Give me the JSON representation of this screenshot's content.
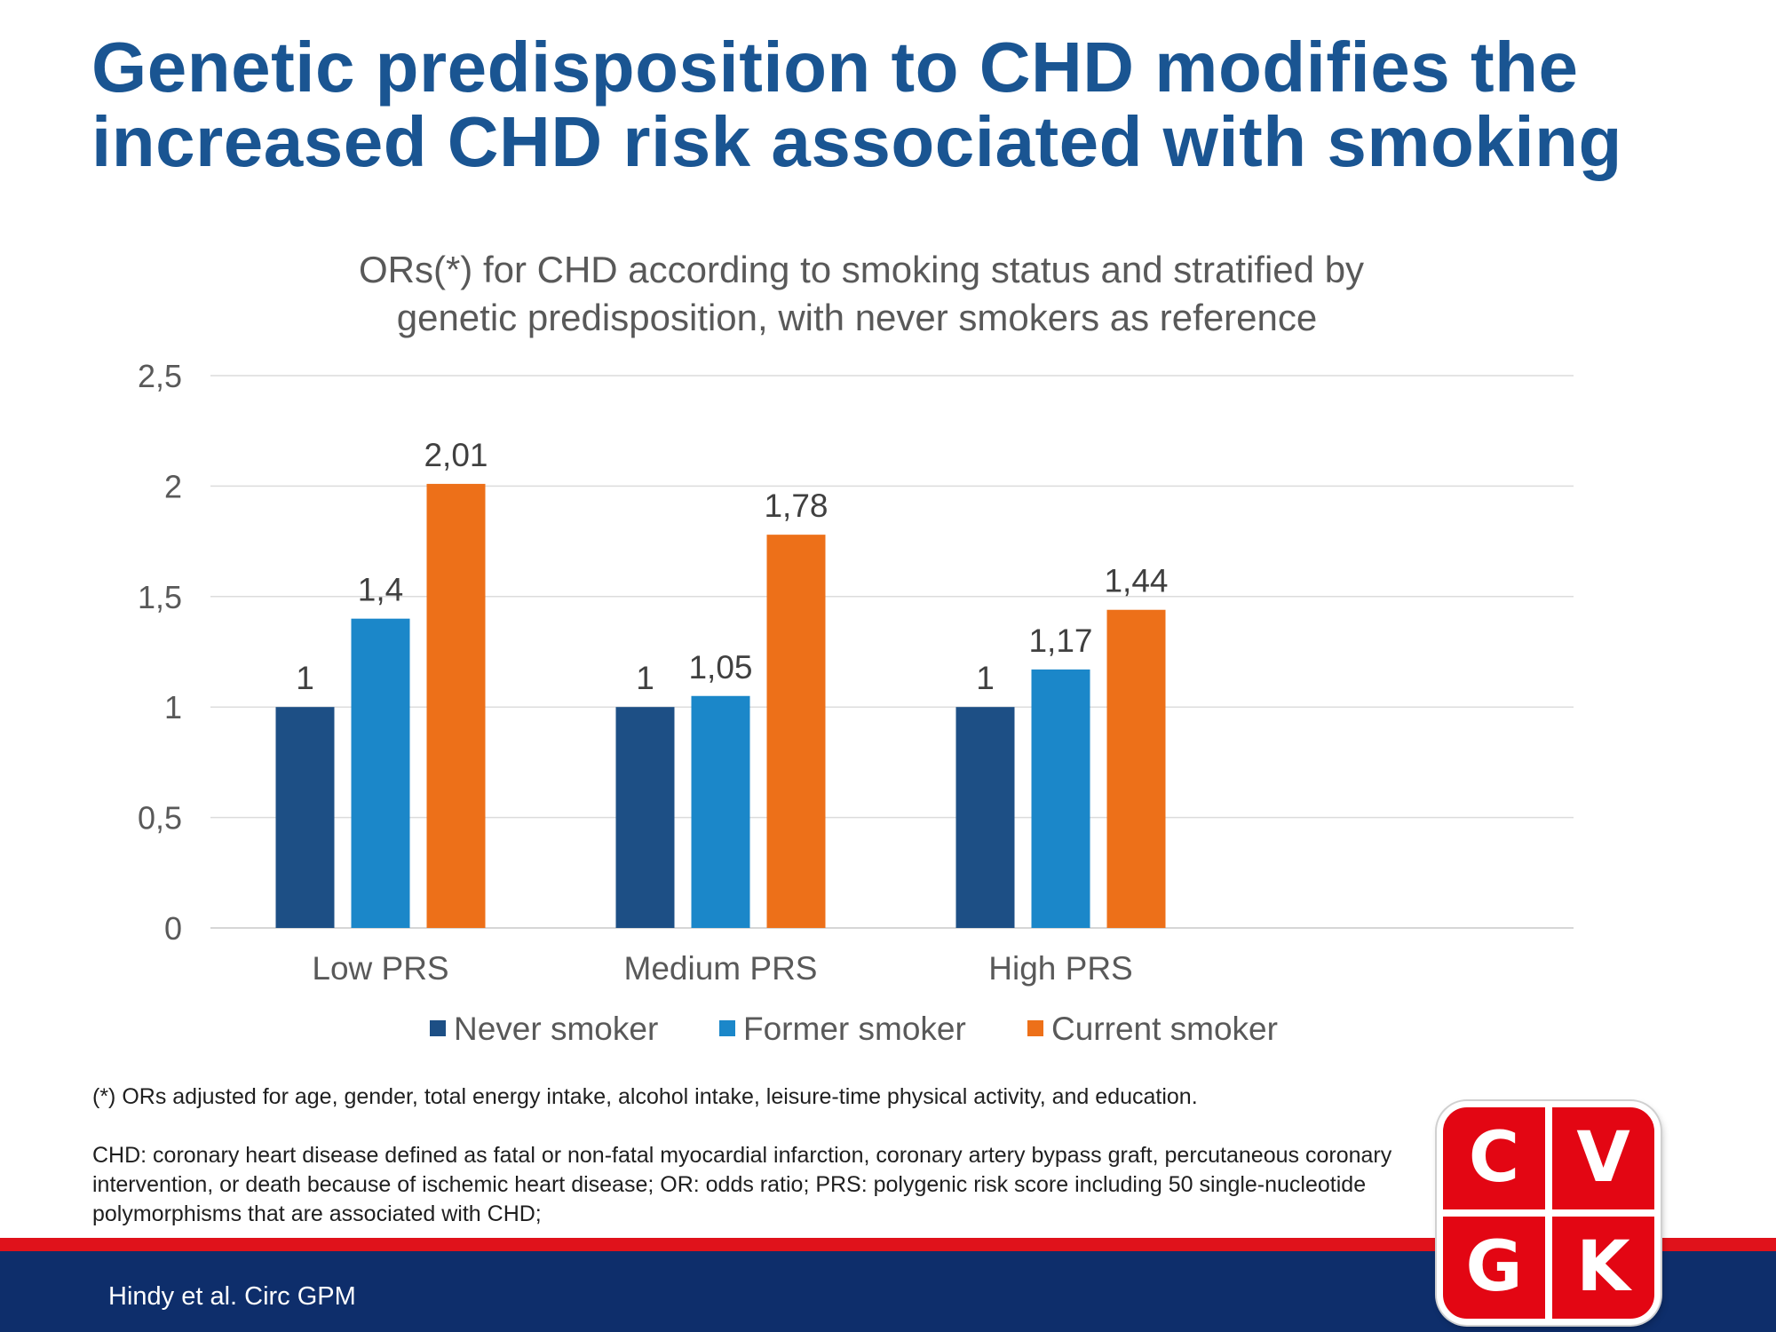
{
  "slide": {
    "title_line1": "Genetic predisposition to CHD modifies the",
    "title_line2": "increased CHD risk associated with smoking",
    "footnote_1": "(*) ORs adjusted for age, gender, total energy intake, alcohol intake, leisure-time physical activity, and education.",
    "footnote_2": "CHD: coronary heart disease defined as fatal or non-fatal myocardial infarction, coronary artery bypass graft, percutaneous coronary intervention, or death because of ischemic heart disease; OR: odds ratio; PRS: polygenic risk score including 50 single-nucleotide polymorphisms that are associated with CHD;",
    "source": "Hindy et al. Circ GPM",
    "logo_letters": [
      "C",
      "V",
      "G",
      "K"
    ]
  },
  "colors": {
    "title": "#1a5592",
    "never_smoker": "#1d4f85",
    "former_smoker": "#1b87c9",
    "current_smoker": "#ed7019",
    "band_red": "#e0121b",
    "band_navy": "#0e2e6b",
    "logo_red": "#e30613"
  },
  "chart_data": {
    "type": "bar",
    "title_lines": [
      "ORs(*) for CHD according to smoking status and stratified by",
      "genetic predisposition, with never smokers as reference"
    ],
    "categories": [
      "Low PRS",
      "Medium PRS",
      "High PRS"
    ],
    "series": [
      {
        "name": "Never smoker",
        "values": [
          1,
          1,
          1
        ],
        "labels": [
          "1",
          "1",
          "1"
        ]
      },
      {
        "name": "Former smoker",
        "values": [
          1.4,
          1.05,
          1.17
        ],
        "labels": [
          "1,4",
          "1,05",
          "1,17"
        ]
      },
      {
        "name": "Current  smoker",
        "values": [
          2.01,
          1.78,
          1.44
        ],
        "labels": [
          "2,01",
          "1,78",
          "1,44"
        ]
      }
    ],
    "yticks": [
      0,
      0.5,
      1,
      1.5,
      2,
      2.5
    ],
    "ytick_labels": [
      "0",
      "0,5",
      "1",
      "1,5",
      "2",
      "2,5"
    ],
    "ylim": [
      0,
      2.5
    ],
    "xlabel": "",
    "ylabel": "",
    "grid": true,
    "legend_position": "bottom"
  }
}
